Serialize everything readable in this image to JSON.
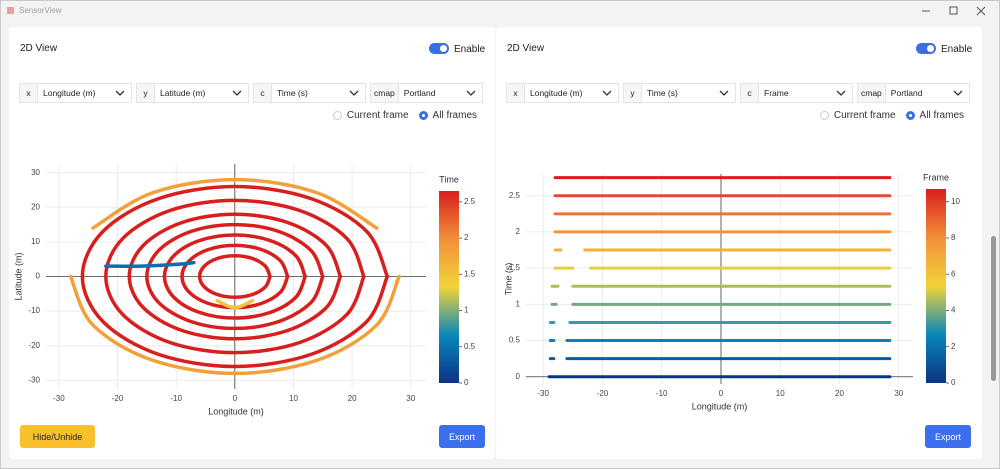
{
  "window": {
    "title": "SensorView"
  },
  "panels": [
    {
      "header": "2D View",
      "toggle": {
        "label": "Enable",
        "on": true
      },
      "selectors": [
        {
          "key": "x",
          "value": "Longitude (m)"
        },
        {
          "key": "y",
          "value": "Latitude (m)"
        },
        {
          "key": "c",
          "value": "Time (s)"
        },
        {
          "key": "cmap",
          "value": "Portland"
        }
      ],
      "radio": {
        "options": [
          "Current frame",
          "All frames"
        ],
        "selected": 1
      },
      "chart_data": {
        "type": "line",
        "xlabel": "Longitude (m)",
        "ylabel": "Latitude (m)",
        "xlim": [
          -32.2,
          32.6
        ],
        "ylim": [
          -32.5,
          32.5
        ],
        "xticks": [
          -30,
          -20,
          -10,
          0,
          10,
          20,
          30
        ],
        "yticks": [
          -30,
          -20,
          -10,
          0,
          10,
          20,
          30
        ],
        "grid": true,
        "zeroline": true,
        "smooth": true,
        "line_width": 3.5,
        "series": [
          {
            "color": "#f2a03a",
            "x": [
              -28,
              -24.2,
              -14,
              0,
              14,
              24.2,
              28,
              null,
              -24.2,
              -14,
              0,
              14,
              24.2
            ],
            "y": [
              0,
              -14,
              -24.2,
              -28,
              -24.2,
              -14,
              0,
              null,
              14,
              24.2,
              28,
              24.2,
              14
            ]
          },
          {
            "color": "#d91e1e",
            "x": [
              26,
              22.5,
              13,
              0,
              -13,
              -22.5,
              -26,
              -22.5,
              -13,
              0,
              13,
              22.5,
              26
            ],
            "y": [
              0,
              13,
              22.5,
              26,
              22.5,
              13,
              0,
              -13,
              -22.5,
              -26,
              -22.5,
              -13,
              0
            ]
          },
          {
            "color": "#d91e1e",
            "x": [
              22,
              19.1,
              11,
              0,
              -11,
              -19.1,
              -22,
              -19.1,
              -11,
              0,
              11,
              19.1,
              22
            ],
            "y": [
              0,
              11,
              19.1,
              22,
              19.1,
              11,
              0,
              -11,
              -19.1,
              -22,
              -19.1,
              -11,
              0
            ]
          },
          {
            "color": "#d91e1e",
            "x": [
              18,
              15.6,
              9,
              0,
              -9,
              -15.6,
              -18,
              -15.6,
              -9,
              0,
              9,
              15.6,
              18
            ],
            "y": [
              0,
              9,
              15.6,
              18,
              15.6,
              9,
              0,
              -9,
              -15.6,
              -18,
              -15.6,
              -9,
              0
            ]
          },
          {
            "color": "#d91e1e",
            "x": [
              15,
              13,
              7.5,
              0,
              -7.5,
              -13,
              -15,
              -13,
              -7.5,
              0,
              7.5,
              13,
              15
            ],
            "y": [
              0,
              7.5,
              13,
              15,
              13,
              7.5,
              0,
              -7.5,
              -13,
              -15,
              -13,
              -7.5,
              0
            ]
          },
          {
            "color": "#d91e1e",
            "x": [
              12,
              10.4,
              6,
              0,
              -6,
              -10.4,
              -12,
              -10.4,
              -6,
              0,
              6,
              10.4,
              12
            ],
            "y": [
              0,
              6,
              10.4,
              12,
              10.4,
              6,
              0,
              -6,
              -10.4,
              -12,
              -10.4,
              -6,
              0
            ]
          },
          {
            "color": "#d91e1e",
            "x": [
              9,
              7.8,
              4.5,
              0,
              -4.5,
              -7.8,
              -9,
              -7.8,
              -4.5,
              0,
              4.5,
              7.8,
              9
            ],
            "y": [
              0,
              4.5,
              7.8,
              9,
              7.8,
              4.5,
              0,
              -4.5,
              -7.8,
              -9,
              -7.8,
              -4.5,
              0
            ]
          },
          {
            "color": "#d91e1e",
            "x": [
              6,
              5.2,
              3,
              0,
              -3,
              -5.2,
              -6,
              -5.2,
              -3,
              0,
              3,
              5.2,
              6
            ],
            "y": [
              0,
              3,
              5.2,
              6,
              5.2,
              3,
              0,
              -3,
              -5.2,
              -6,
              -5.2,
              -3,
              0
            ]
          },
          {
            "color": "#0a6fb0",
            "x": [
              -22,
              -16,
              -10,
              -7
            ],
            "y": [
              3,
              3,
              3.5,
              4
            ]
          },
          {
            "color": "#f2c23a",
            "x": [
              -3,
              0,
              3
            ],
            "y": [
              -7,
              -9,
              -7
            ]
          }
        ],
        "colorbar": {
          "title": "Time",
          "clim": [
            0,
            2.65
          ],
          "ticks": [
            0,
            0.5,
            1,
            1.5,
            2,
            2.5
          ],
          "colorscale": [
            [
              0,
              "#0c3383"
            ],
            [
              0.25,
              "#0a88ba"
            ],
            [
              0.5,
              "#f2d338"
            ],
            [
              0.75,
              "#f28f38"
            ],
            [
              1,
              "#d91e1e"
            ]
          ]
        }
      },
      "buttons": [
        "Hide/Unhide",
        "Export"
      ]
    },
    {
      "header": "2D View",
      "toggle": {
        "label": "Enable",
        "on": true
      },
      "selectors": [
        {
          "key": "x",
          "value": "Longitude (m)"
        },
        {
          "key": "y",
          "value": "Time (s)"
        },
        {
          "key": "c",
          "value": "Frame"
        },
        {
          "key": "cmap",
          "value": "Portland"
        }
      ],
      "radio": {
        "options": [
          "Current frame",
          "All frames"
        ],
        "selected": 1
      },
      "chart_data": {
        "type": "line",
        "xlabel": "Longitude (m)",
        "ylabel": "Time (s)",
        "xlim": [
          -32.9,
          32.4
        ],
        "ylim": [
          -0.1,
          2.8
        ],
        "xticks": [
          -30,
          -20,
          -10,
          0,
          10,
          20,
          30
        ],
        "yticks": [
          0,
          0.5,
          1,
          1.5,
          2,
          2.5
        ],
        "grid": true,
        "zeroline": true,
        "smooth": false,
        "line_width": 3,
        "series": [
          {
            "color": "#0c3383",
            "x": [
              -29,
              28.5
            ],
            "y": [
              0,
              0
            ]
          },
          {
            "color": "#0a5aa5",
            "x": [
              -28.8,
              -28.2,
              null,
              -26,
              28.5
            ],
            "y": [
              0.25,
              0.25,
              null,
              0.25,
              0.25
            ]
          },
          {
            "color": "#0a7fb8",
            "x": [
              -28.8,
              -28.2,
              null,
              -26,
              28.5
            ],
            "y": [
              0.5,
              0.5,
              null,
              0.5,
              0.5
            ]
          },
          {
            "color": "#3c97a8",
            "x": [
              -28.8,
              -28.2,
              null,
              -25.5,
              28.5
            ],
            "y": [
              0.75,
              0.75,
              null,
              0.75,
              0.75
            ]
          },
          {
            "color": "#75a883",
            "x": [
              -28.5,
              -27.8,
              null,
              -25,
              28.5
            ],
            "y": [
              1,
              1,
              null,
              1,
              1
            ]
          },
          {
            "color": "#b0bb5e",
            "x": [
              -28.5,
              -27.5,
              null,
              -25,
              28.5
            ],
            "y": [
              1.25,
              1.25,
              null,
              1.25,
              1.25
            ]
          },
          {
            "color": "#e8cd3d",
            "x": [
              -28,
              -25,
              null,
              -22,
              28.5
            ],
            "y": [
              1.5,
              1.5,
              null,
              1.5,
              1.5
            ]
          },
          {
            "color": "#f2b23a",
            "x": [
              -28,
              -27,
              null,
              -23,
              28.5
            ],
            "y": [
              1.75,
              1.75,
              null,
              1.75,
              1.75
            ]
          },
          {
            "color": "#f29239",
            "x": [
              -28,
              28.5
            ],
            "y": [
              2,
              2
            ]
          },
          {
            "color": "#ec7438",
            "x": [
              -28,
              28.5
            ],
            "y": [
              2.25,
              2.25
            ]
          },
          {
            "color": "#e34a2f",
            "x": [
              -28,
              28.5
            ],
            "y": [
              2.5,
              2.5
            ]
          },
          {
            "color": "#d91e1e",
            "x": [
              -28,
              28.5
            ],
            "y": [
              2.75,
              2.75
            ]
          }
        ],
        "colorbar": {
          "title": "Frame",
          "clim": [
            0,
            10.7
          ],
          "ticks": [
            0,
            2,
            4,
            6,
            8,
            10
          ],
          "colorscale": [
            [
              0,
              "#0c3383"
            ],
            [
              0.25,
              "#0a88ba"
            ],
            [
              0.5,
              "#f2d338"
            ],
            [
              0.75,
              "#f28f38"
            ],
            [
              1,
              "#d91e1e"
            ]
          ]
        }
      },
      "buttons": [
        "Export"
      ]
    }
  ]
}
